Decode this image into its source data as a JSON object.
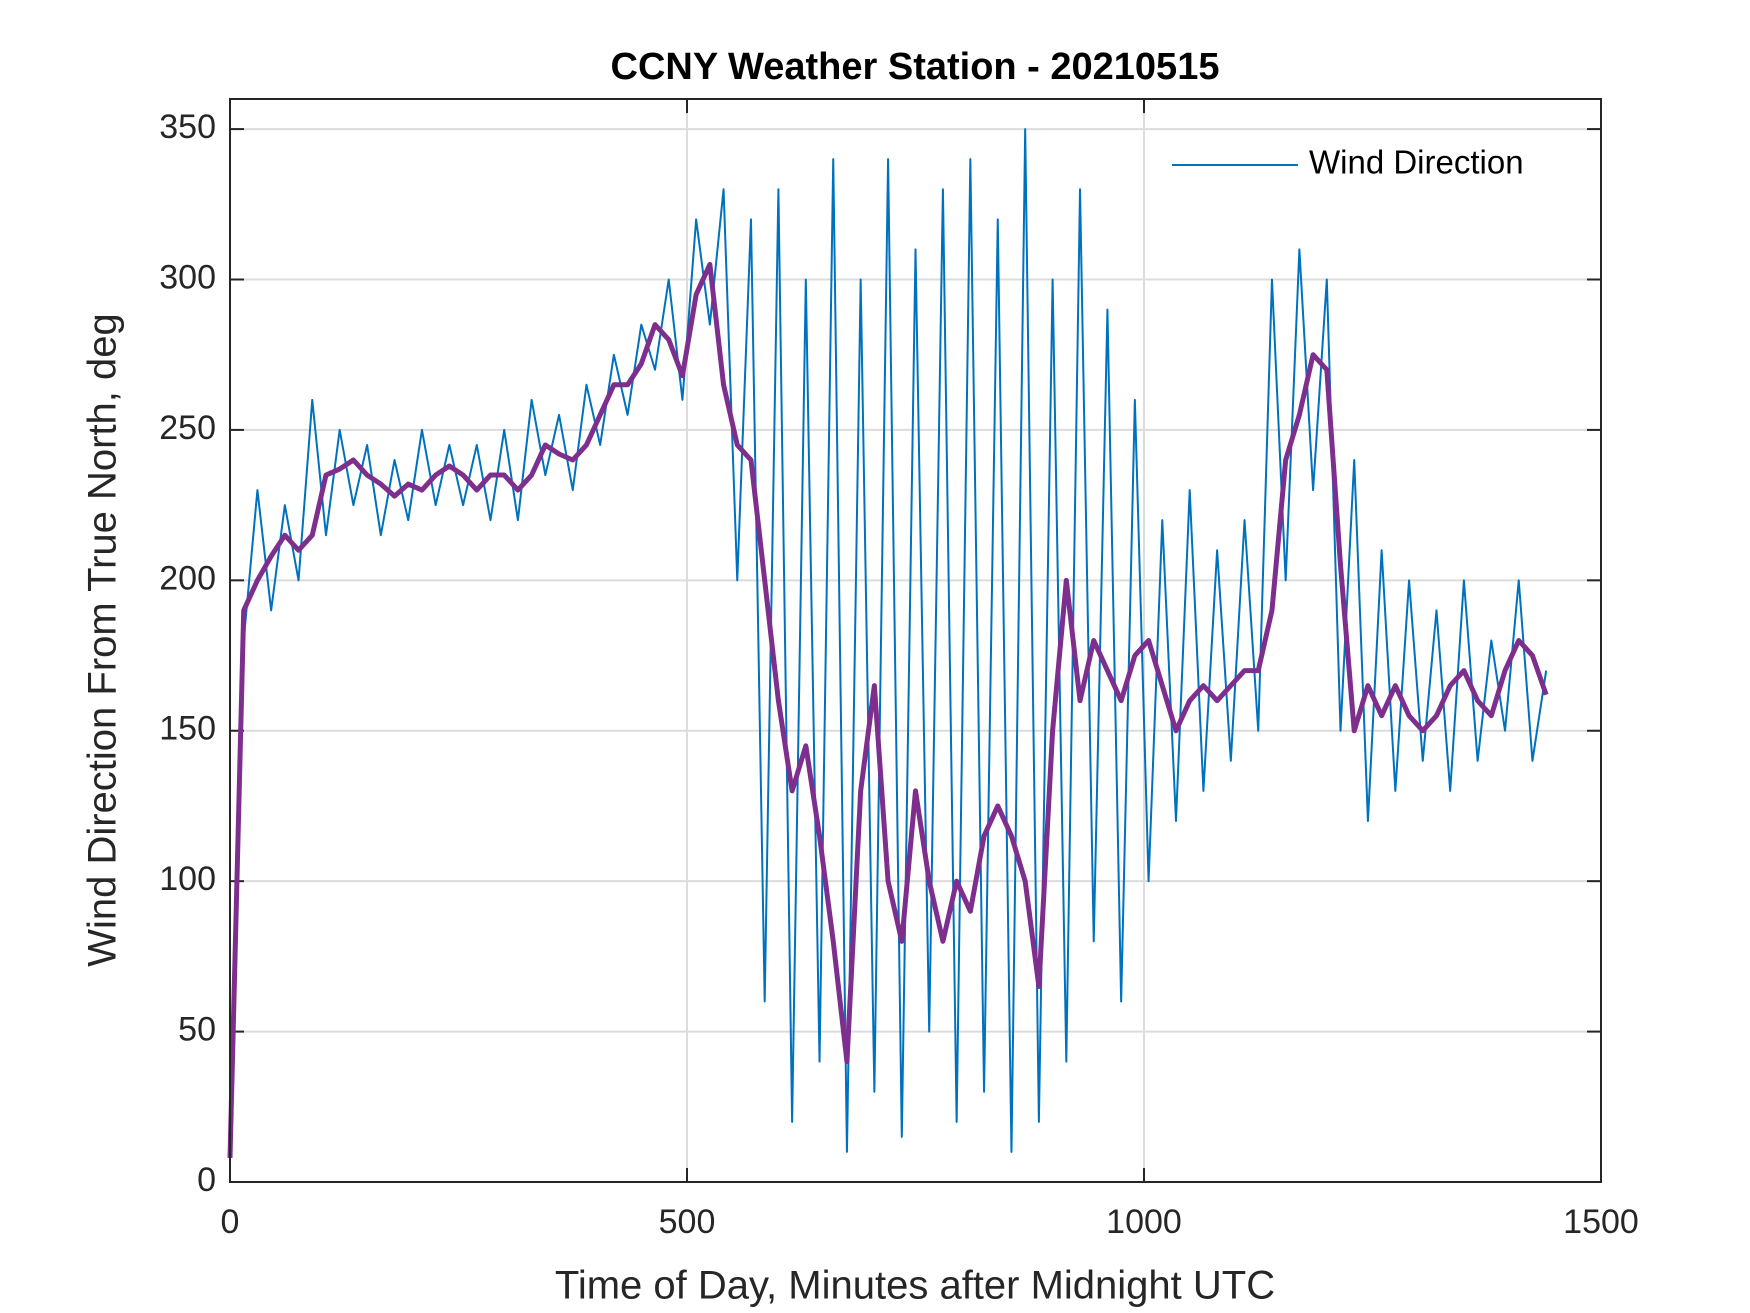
{
  "chart_data": {
    "type": "line",
    "title": "CCNY Weather Station - 20210515",
    "xlabel": "Time of Day, Minutes after Midnight UTC",
    "ylabel": "Wind Direction From True North, deg",
    "x": [
      0,
      15,
      30,
      45,
      60,
      75,
      90,
      105,
      120,
      135,
      150,
      165,
      180,
      195,
      210,
      225,
      240,
      255,
      270,
      285,
      300,
      315,
      330,
      345,
      360,
      375,
      390,
      405,
      420,
      435,
      450,
      465,
      480,
      495,
      510,
      525,
      540,
      555,
      570,
      585,
      600,
      615,
      630,
      645,
      660,
      675,
      690,
      705,
      720,
      735,
      750,
      765,
      780,
      795,
      810,
      825,
      840,
      855,
      870,
      885,
      900,
      915,
      930,
      945,
      960,
      975,
      990,
      1005,
      1020,
      1035,
      1050,
      1065,
      1080,
      1095,
      1110,
      1125,
      1140,
      1155,
      1170,
      1185,
      1200,
      1215,
      1230,
      1245,
      1260,
      1275,
      1290,
      1305,
      1320,
      1335,
      1350,
      1365,
      1380,
      1395,
      1410,
      1425,
      1440
    ],
    "series": [
      {
        "name": "Wind Direction",
        "color": "#0072BD",
        "values": [
          10,
          180,
          230,
          190,
          225,
          200,
          260,
          215,
          250,
          225,
          245,
          215,
          240,
          220,
          250,
          225,
          245,
          225,
          245,
          220,
          250,
          220,
          260,
          235,
          255,
          230,
          265,
          245,
          275,
          255,
          285,
          270,
          300,
          260,
          320,
          285,
          330,
          200,
          320,
          60,
          330,
          20,
          300,
          40,
          340,
          10,
          300,
          30,
          340,
          15,
          310,
          50,
          330,
          20,
          340,
          30,
          320,
          10,
          350,
          20,
          300,
          40,
          330,
          80,
          290,
          60,
          260,
          100,
          220,
          120,
          230,
          130,
          210,
          140,
          220,
          150,
          300,
          200,
          310,
          230,
          300,
          150,
          240,
          120,
          210,
          130,
          200,
          140,
          190,
          130,
          200,
          140,
          180,
          150,
          200,
          140,
          170
        ]
      },
      {
        "color": "#7E2F8E",
        "values": [
          8,
          190,
          200,
          208,
          215,
          210,
          215,
          235,
          237,
          240,
          235,
          232,
          228,
          232,
          230,
          235,
          238,
          235,
          230,
          235,
          235,
          230,
          235,
          245,
          242,
          240,
          245,
          255,
          265,
          265,
          272,
          285,
          280,
          268,
          295,
          305,
          265,
          245,
          240,
          200,
          160,
          130,
          145,
          115,
          80,
          40,
          130,
          165,
          100,
          80,
          130,
          100,
          80,
          100,
          90,
          115,
          125,
          115,
          100,
          65,
          150,
          200,
          160,
          180,
          170,
          160,
          175,
          180,
          165,
          150,
          160,
          165,
          160,
          165,
          170,
          170,
          190,
          240,
          255,
          275,
          270,
          205,
          150,
          165,
          155,
          165,
          155,
          150,
          155,
          165,
          170,
          160,
          155,
          170,
          180,
          175,
          162
        ]
      }
    ],
    "xlim": [
      0,
      1500
    ],
    "xticks": [
      0,
      500,
      1000,
      1500
    ],
    "ylim": [
      0,
      360
    ],
    "yticks": [
      0,
      50,
      100,
      150,
      200,
      250,
      300,
      350
    ],
    "grid": true,
    "legend": "upper right"
  }
}
